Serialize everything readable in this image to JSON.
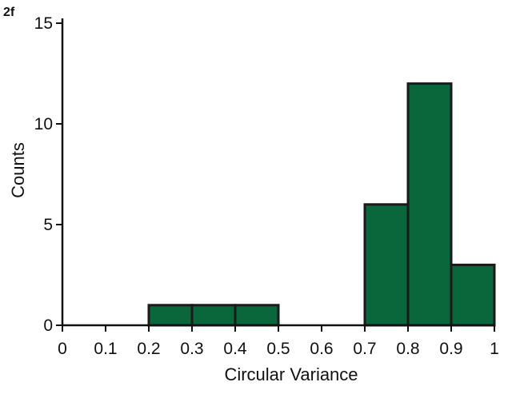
{
  "chart_data": {
    "type": "bar",
    "panel_label": "2f",
    "xlabel": "Circular Variance",
    "ylabel": "Counts",
    "xlim": [
      0,
      1
    ],
    "ylim": [
      0,
      15
    ],
    "xticks": [
      0,
      0.1,
      0.2,
      0.3,
      0.4,
      0.5,
      0.6,
      0.7,
      0.8,
      0.9,
      1
    ],
    "xtick_labels": [
      "0",
      "0.1",
      "0.2",
      "0.3",
      "0.4",
      "0.5",
      "0.6",
      "0.7",
      "0.8",
      "0.9",
      "1"
    ],
    "yticks": [
      0,
      5,
      10,
      15
    ],
    "ytick_labels": [
      "0",
      "5",
      "10",
      "15"
    ],
    "bins": [
      {
        "x0": 0.0,
        "x1": 0.1,
        "count": 0
      },
      {
        "x0": 0.1,
        "x1": 0.2,
        "count": 0
      },
      {
        "x0": 0.2,
        "x1": 0.3,
        "count": 1
      },
      {
        "x0": 0.3,
        "x1": 0.4,
        "count": 1
      },
      {
        "x0": 0.4,
        "x1": 0.5,
        "count": 1
      },
      {
        "x0": 0.5,
        "x1": 0.6,
        "count": 0
      },
      {
        "x0": 0.6,
        "x1": 0.7,
        "count": 0
      },
      {
        "x0": 0.7,
        "x1": 0.8,
        "count": 6
      },
      {
        "x0": 0.8,
        "x1": 0.9,
        "count": 12
      },
      {
        "x0": 0.9,
        "x1": 1.0,
        "count": 3
      }
    ],
    "bar_color": "#09673b",
    "edge_color": "#1a1a1a",
    "grid": false,
    "legend": "none"
  }
}
